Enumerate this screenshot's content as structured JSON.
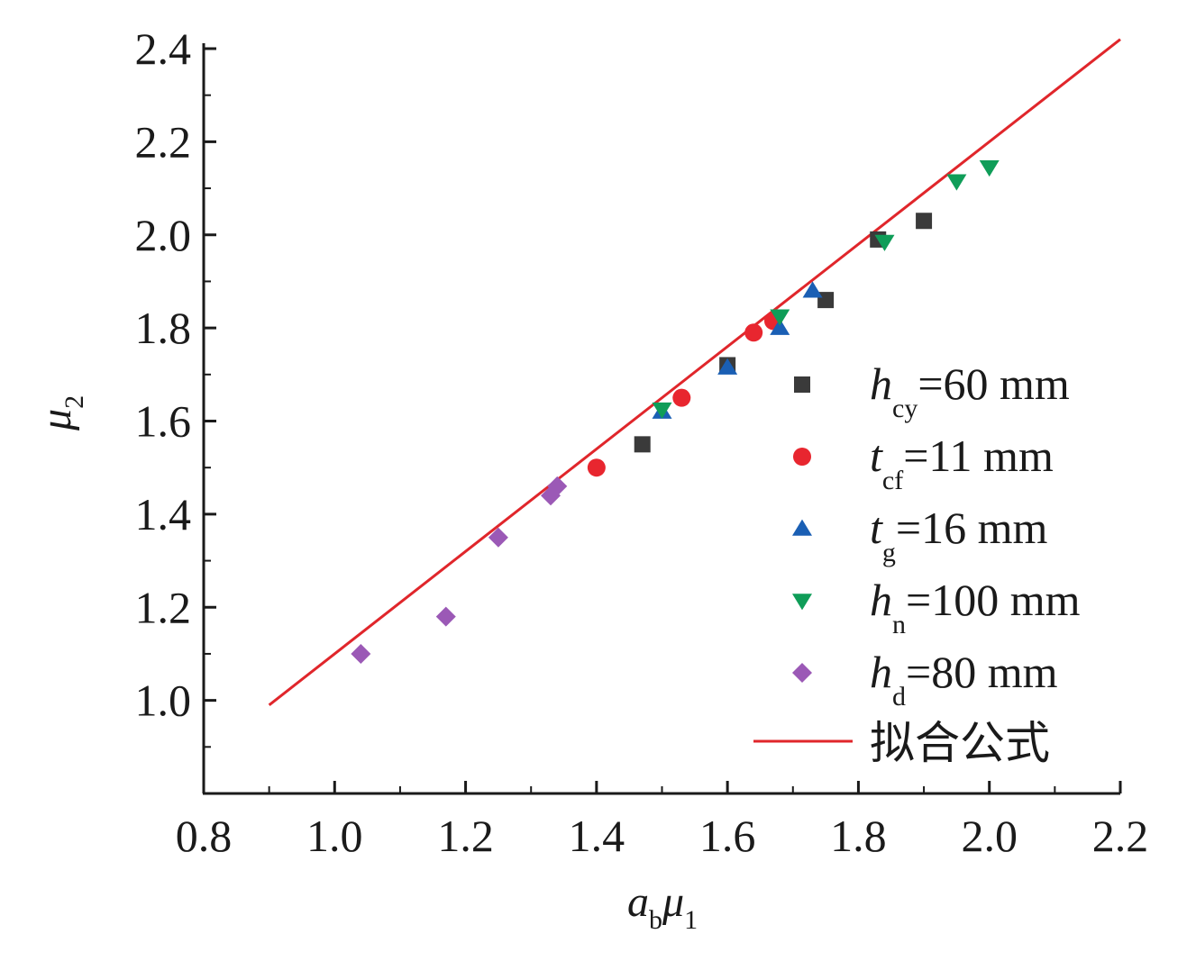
{
  "chart_data": {
    "type": "scatter",
    "title": "",
    "xlabel": {
      "base": "a",
      "sub": "b",
      "base2": "μ",
      "sub2": "1"
    },
    "ylabel": {
      "base": "μ",
      "sub": "2"
    },
    "xlim": [
      0.8,
      2.2
    ],
    "ylim": [
      0.8,
      2.4
    ],
    "x_ticks": [
      "0.8",
      "1.0",
      "1.2",
      "1.4",
      "1.6",
      "1.8",
      "2.0",
      "2.2"
    ],
    "y_ticks": [
      "1.0",
      "1.2",
      "1.4",
      "1.6",
      "1.8",
      "2.0",
      "2.2",
      "2.4"
    ],
    "grid": false,
    "legend_position": "right",
    "series": [
      {
        "id": "hcy",
        "name": {
          "base": "h",
          "sub": "cy",
          "rest": "=60 mm"
        },
        "marker": "square",
        "color": "#3a3a3a",
        "points": [
          [
            1.47,
            1.55
          ],
          [
            1.6,
            1.72
          ],
          [
            1.75,
            1.86
          ],
          [
            1.83,
            1.99
          ],
          [
            1.9,
            2.03
          ]
        ]
      },
      {
        "id": "tcf",
        "name": {
          "base": "t",
          "sub": "cf",
          "rest": "=11 mm"
        },
        "marker": "circle",
        "color": "#e8262f",
        "points": [
          [
            1.4,
            1.5
          ],
          [
            1.53,
            1.65
          ],
          [
            1.64,
            1.79
          ],
          [
            1.67,
            1.815
          ]
        ]
      },
      {
        "id": "tg",
        "name": {
          "base": "t",
          "sub": "g",
          "rest": "=16 mm"
        },
        "marker": "triangle-up",
        "color": "#1a5fb4",
        "points": [
          [
            1.5,
            1.62
          ],
          [
            1.6,
            1.715
          ],
          [
            1.68,
            1.8
          ],
          [
            1.73,
            1.88
          ]
        ]
      },
      {
        "id": "hn",
        "name": {
          "base": "h",
          "sub": "n",
          "rest": "=100 mm"
        },
        "marker": "triangle-down",
        "color": "#0f9d58",
        "points": [
          [
            1.5,
            1.625
          ],
          [
            1.68,
            1.825
          ],
          [
            1.84,
            1.985
          ],
          [
            1.95,
            2.115
          ],
          [
            2.0,
            2.145
          ]
        ]
      },
      {
        "id": "hd",
        "name": {
          "base": "h",
          "sub": "d",
          "rest": "=80 mm"
        },
        "marker": "diamond",
        "color": "#9b59b6",
        "points": [
          [
            1.04,
            1.1
          ],
          [
            1.17,
            1.18
          ],
          [
            1.25,
            1.35
          ],
          [
            1.33,
            1.44
          ],
          [
            1.34,
            1.46
          ]
        ]
      }
    ],
    "fit_line": {
      "name": "拟合公式",
      "color": "#e0262b",
      "points": [
        [
          0.9,
          0.99
        ],
        [
          2.2,
          2.42
        ]
      ]
    }
  }
}
